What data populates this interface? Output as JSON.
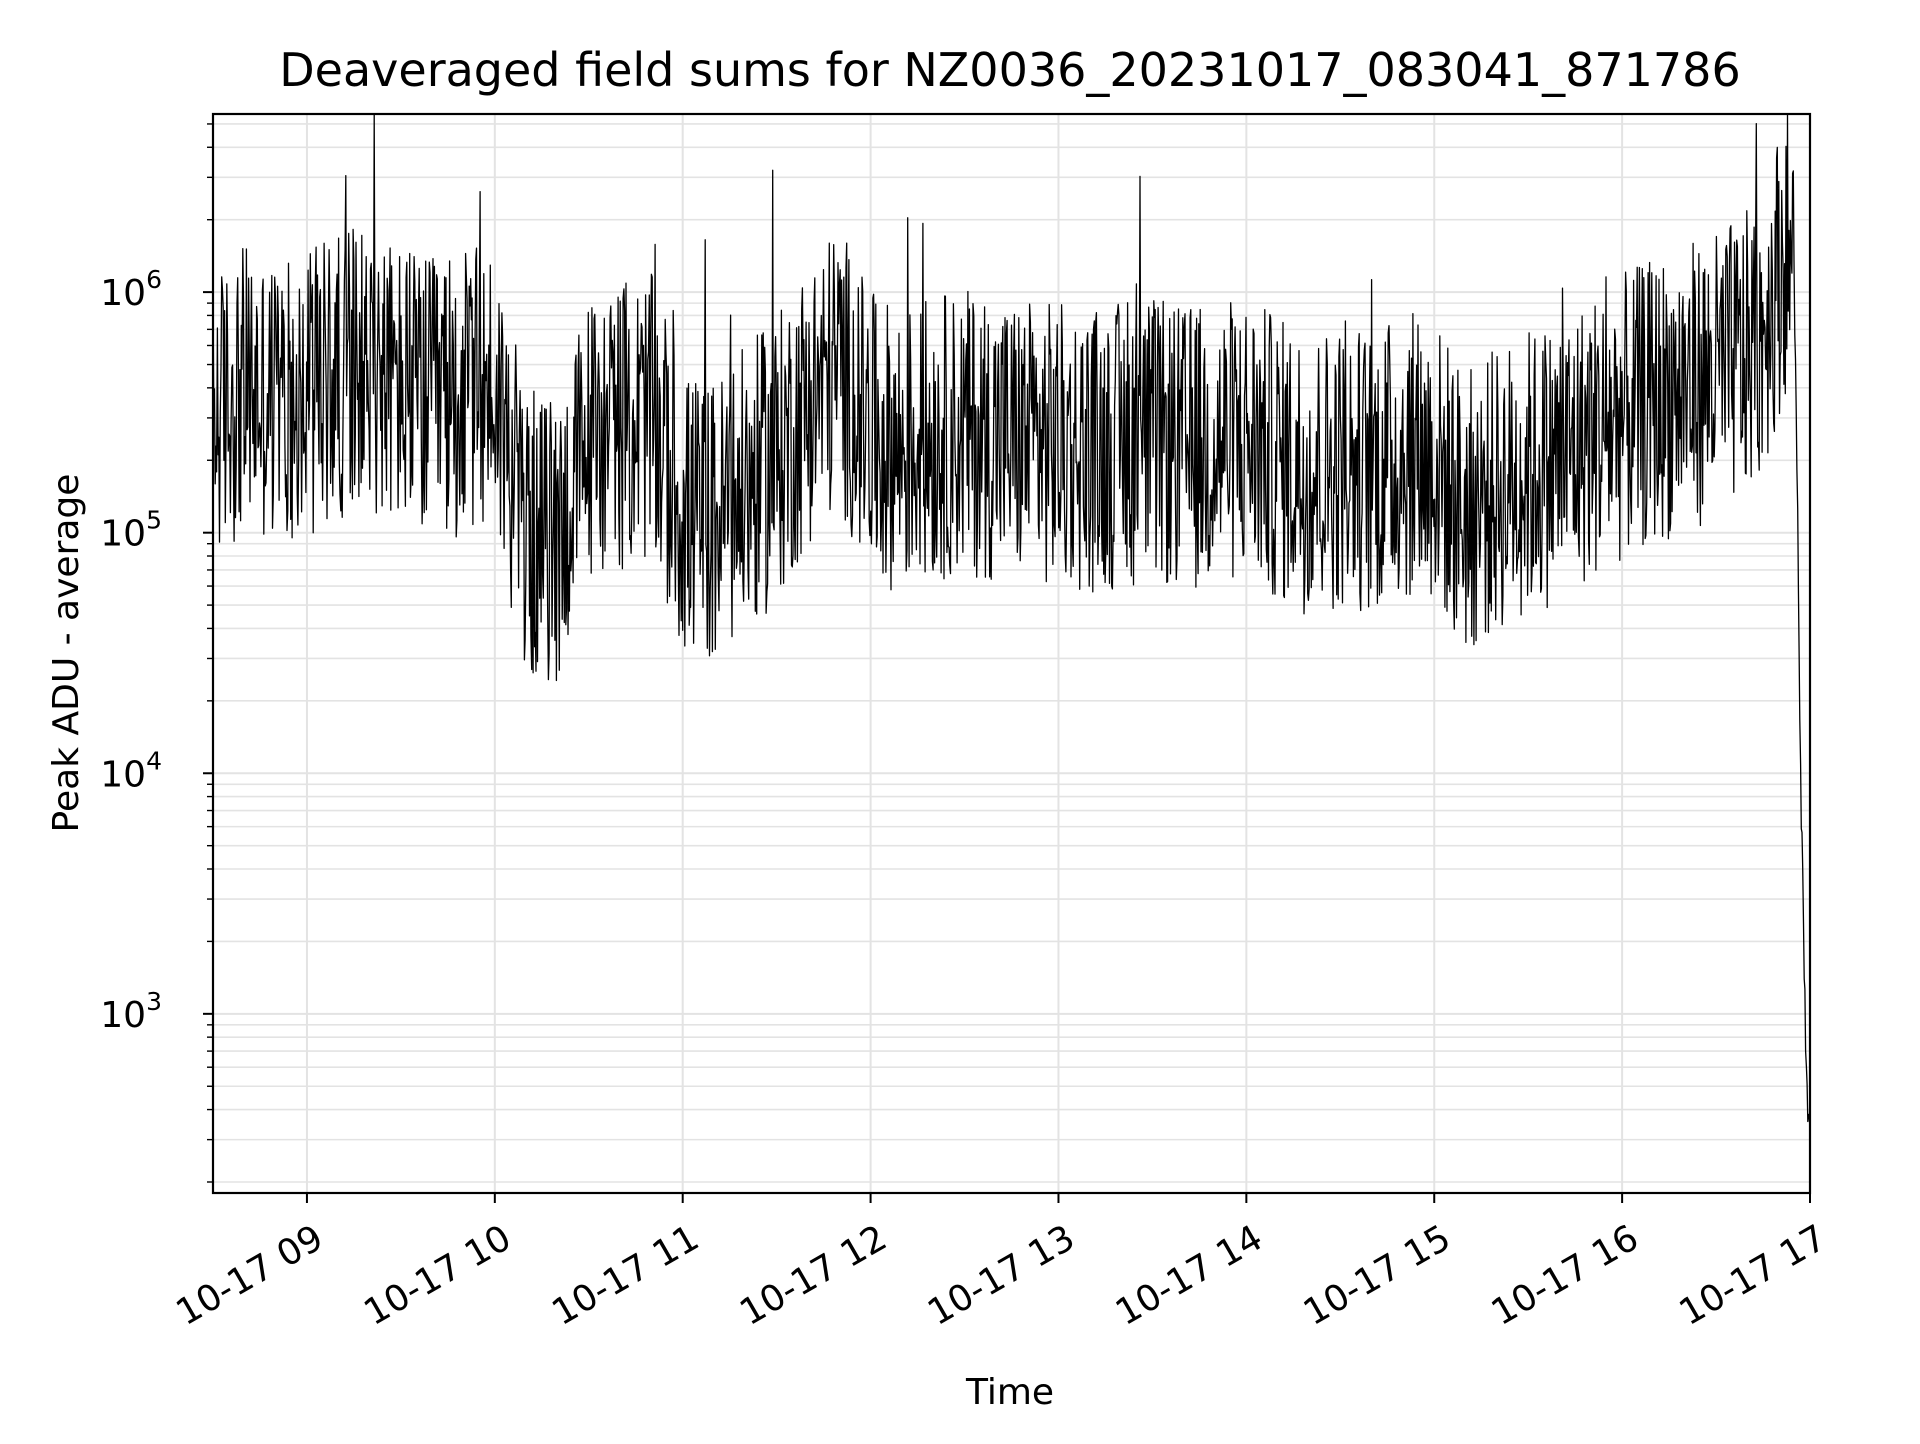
{
  "chart_data": {
    "type": "line",
    "title": "Deaveraged field sums for NZ0036_20231017_083041_871786",
    "xlabel": "Time",
    "ylabel": "Peak ADU - average",
    "y_scale": "log",
    "ylim": [
      180,
      5500000
    ],
    "xlim": [
      "10-17 08:30",
      "10-17 17:00"
    ],
    "grid": true,
    "legend": "none",
    "line_color": "#000000",
    "grid_color": "#e3e3e3",
    "x_ticks": [
      {
        "x": "10-17 09:00",
        "label": "10-17 09"
      },
      {
        "x": "10-17 10:00",
        "label": "10-17 10"
      },
      {
        "x": "10-17 11:00",
        "label": "10-17 11"
      },
      {
        "x": "10-17 12:00",
        "label": "10-17 12"
      },
      {
        "x": "10-17 13:00",
        "label": "10-17 13"
      },
      {
        "x": "10-17 14:00",
        "label": "10-17 14"
      },
      {
        "x": "10-17 15:00",
        "label": "10-17 15"
      },
      {
        "x": "10-17 16:00",
        "label": "10-17 16"
      },
      {
        "x": "10-17 17:00",
        "label": "10-17 17"
      }
    ],
    "y_ticks": [
      {
        "y": 1000,
        "base": "10",
        "exp": "3"
      },
      {
        "y": 10000,
        "base": "10",
        "exp": "4"
      },
      {
        "y": 100000,
        "base": "10",
        "exp": "5"
      },
      {
        "y": 1000000,
        "base": "10",
        "exp": "6"
      }
    ],
    "series": [
      {
        "x": [
          "10-17 08:30",
          "10-17 08:40",
          "10-17 08:50",
          "10-17 09:00",
          "10-17 09:10",
          "10-17 09:20",
          "10-17 09:30",
          "10-17 09:40",
          "10-17 09:50",
          "10-17 10:00",
          "10-17 10:10",
          "10-17 10:20",
          "10-17 10:30",
          "10-17 10:40",
          "10-17 10:50",
          "10-17 11:00",
          "10-17 11:10",
          "10-17 11:20",
          "10-17 11:30",
          "10-17 11:40",
          "10-17 11:50",
          "10-17 12:00",
          "10-17 12:10",
          "10-17 12:20",
          "10-17 12:30",
          "10-17 12:40",
          "10-17 12:50",
          "10-17 13:00",
          "10-17 13:10",
          "10-17 13:20",
          "10-17 13:30",
          "10-17 13:40",
          "10-17 13:50",
          "10-17 14:00",
          "10-17 14:10",
          "10-17 14:20",
          "10-17 14:30",
          "10-17 14:40",
          "10-17 14:50",
          "10-17 15:00",
          "10-17 15:10",
          "10-17 15:20",
          "10-17 15:30",
          "10-17 15:40",
          "10-17 15:50",
          "10-17 16:00",
          "10-17 16:10",
          "10-17 16:20",
          "10-17 16:30",
          "10-17 16:40",
          "10-17 16:45",
          "10-17 16:50",
          "10-17 16:53",
          "10-17 16:55",
          "10-17 16:56",
          "10-17 16:57",
          "10-17 16:58",
          "10-17 16:59",
          "10-17 17:00"
        ],
        "y": [
          300000,
          400000,
          350000,
          380000,
          450000,
          500000,
          400000,
          350000,
          380000,
          400000,
          100000,
          90000,
          250000,
          280000,
          300000,
          120000,
          110000,
          150000,
          200000,
          350000,
          500000,
          250000,
          220000,
          250000,
          260000,
          250000,
          240000,
          230000,
          220000,
          230000,
          240000,
          220000,
          230000,
          250000,
          200000,
          180000,
          190000,
          180000,
          210000,
          200000,
          120000,
          150000,
          180000,
          200000,
          250000,
          300000,
          350000,
          400000,
          450000,
          550000,
          700000,
          1200000,
          1600000,
          1000000,
          150000,
          10000,
          2000,
          500,
          300
        ]
      }
    ]
  }
}
